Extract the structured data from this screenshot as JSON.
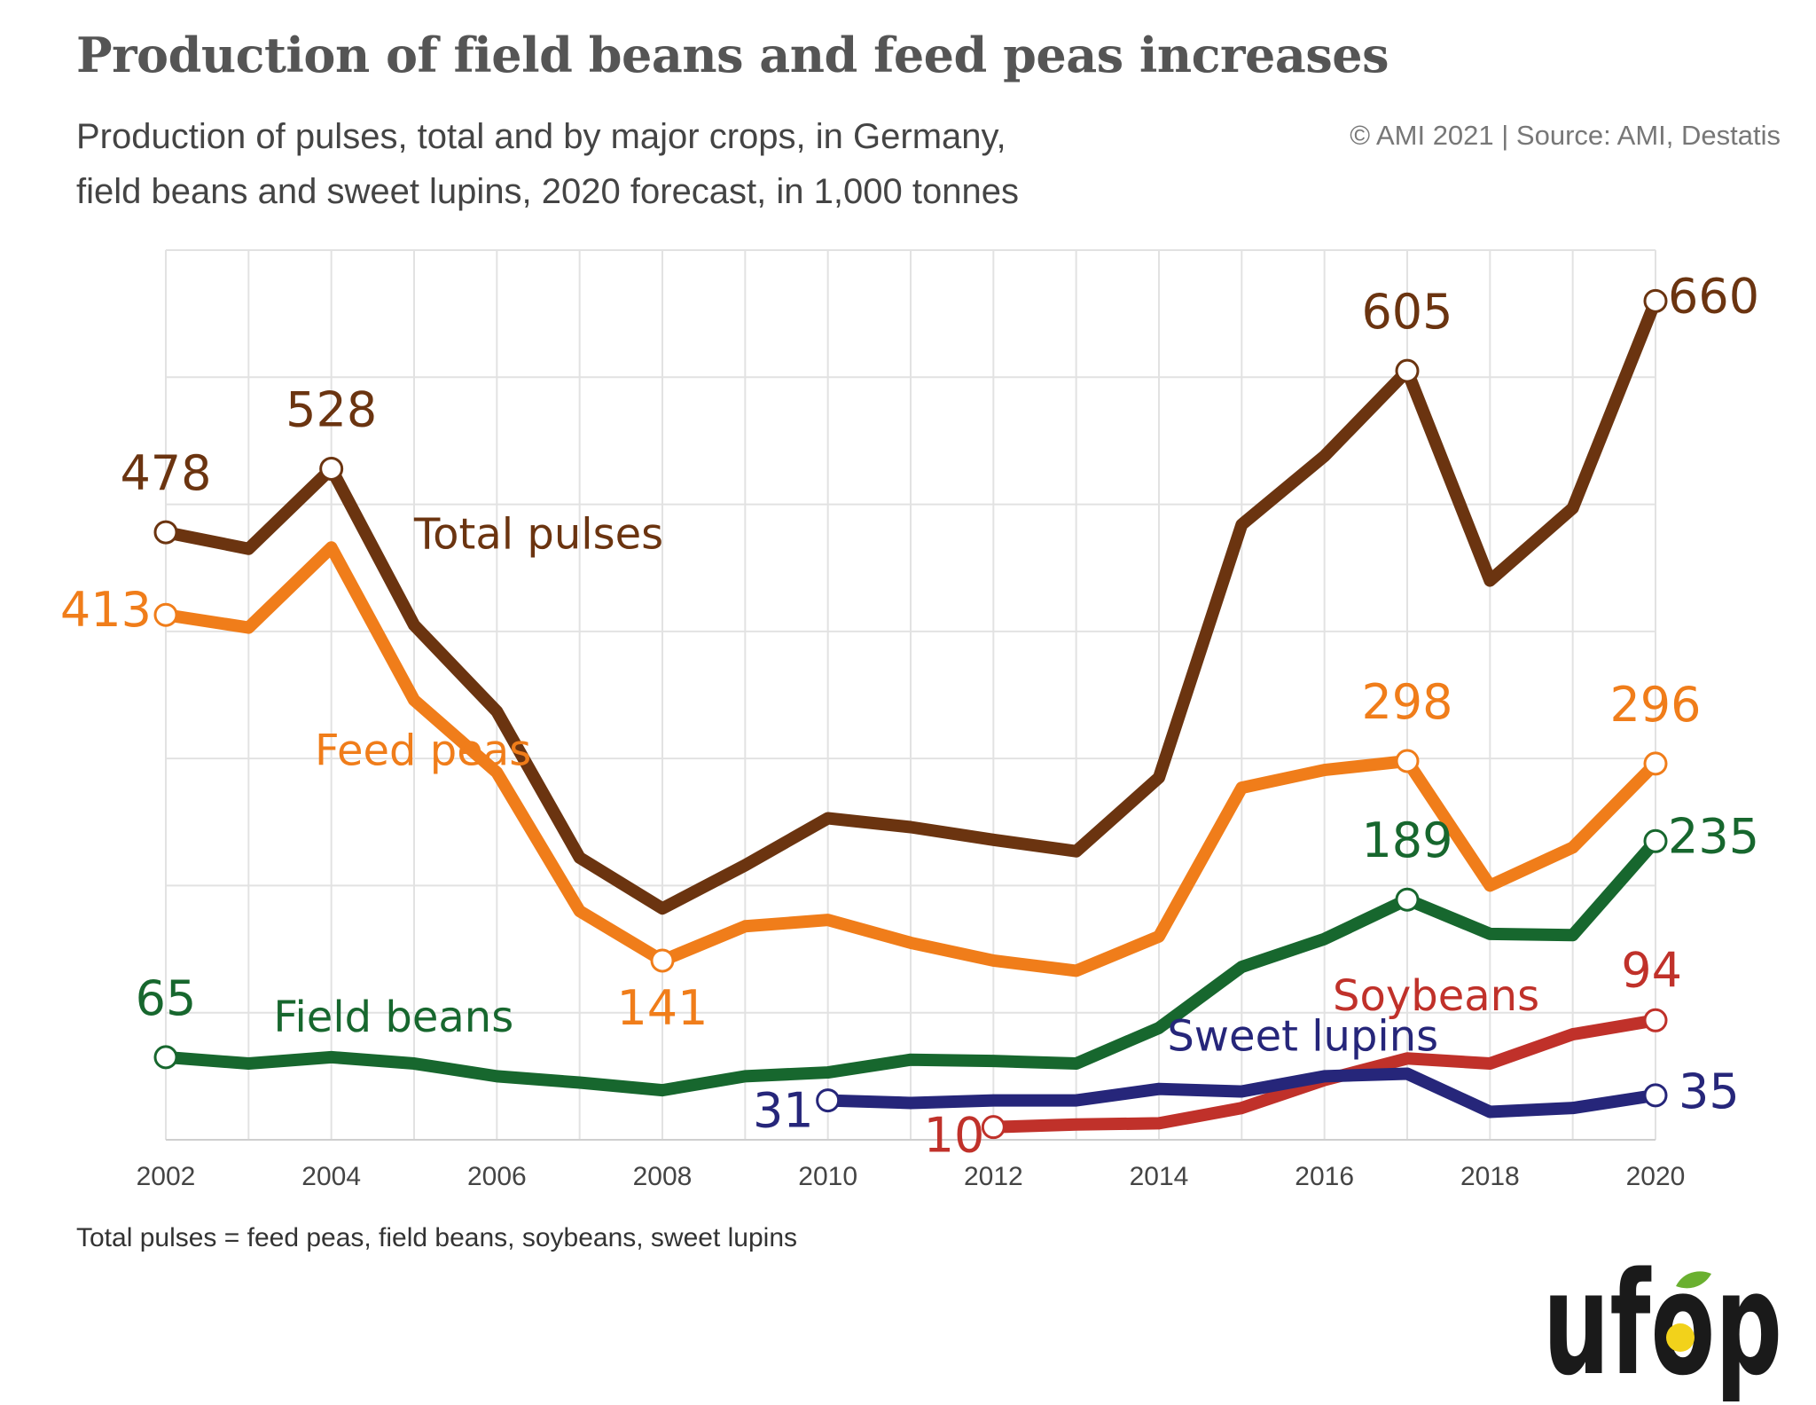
{
  "title": "Production of field beans and feed peas increases",
  "subtitle_line1": "Production of pulses, total and by major crops, in Germany,",
  "subtitle_line2": "field beans and sweet lupins, 2020 forecast, in 1,000 tonnes",
  "source": "© AMI 2021 | Source: AMI, Destatis",
  "footnote": "Total pulses = feed peas, field beans, soybeans, sweet lupins",
  "logo_text": "ufop",
  "chart_data": {
    "type": "line",
    "xlim": [
      2002,
      2020
    ],
    "ylim": [
      0,
      700
    ],
    "grid": true,
    "x_ticks": [
      2002,
      2004,
      2006,
      2008,
      2010,
      2012,
      2014,
      2016,
      2018,
      2020
    ],
    "series": [
      {
        "name": "Total pulses",
        "color": "#6b3410",
        "x": [
          2002,
          2003,
          2004,
          2005,
          2006,
          2007,
          2008,
          2009,
          2010,
          2011,
          2012,
          2013,
          2014,
          2015,
          2016,
          2017,
          2018,
          2019,
          2020
        ],
        "y": [
          478,
          465,
          528,
          405,
          337,
          222,
          182,
          216,
          253,
          246,
          236,
          227,
          285,
          484,
          538,
          605,
          440,
          497,
          660
        ],
        "labels": [
          {
            "x": 2002,
            "text": "478"
          },
          {
            "x": 2004,
            "text": "528"
          },
          {
            "x": 2017,
            "text": "605"
          },
          {
            "x": 2020,
            "text": "660"
          }
        ]
      },
      {
        "name": "Feed peas",
        "color": "#f07d1a",
        "x": [
          2002,
          2003,
          2004,
          2005,
          2006,
          2007,
          2008,
          2009,
          2010,
          2011,
          2012,
          2013,
          2014,
          2015,
          2016,
          2017,
          2018,
          2019,
          2020
        ],
        "y": [
          413,
          403,
          466,
          346,
          289,
          180,
          141,
          168,
          173,
          155,
          141,
          133,
          160,
          277,
          291,
          298,
          200,
          230,
          296
        ],
        "labels": [
          {
            "x": 2002,
            "text": "413"
          },
          {
            "x": 2008,
            "text": "141"
          },
          {
            "x": 2017,
            "text": "298"
          },
          {
            "x": 2020,
            "text": "296"
          }
        ]
      },
      {
        "name": "Field beans",
        "color": "#17672e",
        "x": [
          2002,
          2003,
          2004,
          2005,
          2006,
          2007,
          2008,
          2009,
          2010,
          2011,
          2012,
          2013,
          2014,
          2015,
          2016,
          2017,
          2018,
          2019,
          2020
        ],
        "y": [
          65,
          60,
          65,
          60,
          50,
          45,
          39,
          50,
          53,
          63,
          62,
          60,
          88,
          136,
          158,
          189,
          162,
          161,
          235
        ],
        "labels": [
          {
            "x": 2002,
            "text": "65"
          },
          {
            "x": 2017,
            "text": "189"
          },
          {
            "x": 2020,
            "text": "235"
          }
        ]
      },
      {
        "name": "Soybeans",
        "color": "#c0312a",
        "x": [
          2012,
          2013,
          2014,
          2015,
          2016,
          2017,
          2018,
          2019,
          2020
        ],
        "y": [
          10,
          12,
          13,
          25,
          47,
          64,
          60,
          83,
          94
        ],
        "labels": [
          {
            "x": 2012,
            "text": "10"
          },
          {
            "x": 2020,
            "text": "94"
          }
        ]
      },
      {
        "name": "Sweet lupins",
        "color": "#26267a",
        "x": [
          2010,
          2011,
          2012,
          2013,
          2014,
          2015,
          2016,
          2017,
          2018,
          2019,
          2020
        ],
        "y": [
          31,
          29,
          31,
          31,
          40,
          38,
          50,
          52,
          22,
          25,
          35
        ],
        "labels": [
          {
            "x": 2010,
            "text": "31"
          },
          {
            "x": 2020,
            "text": "35"
          }
        ]
      }
    ]
  }
}
